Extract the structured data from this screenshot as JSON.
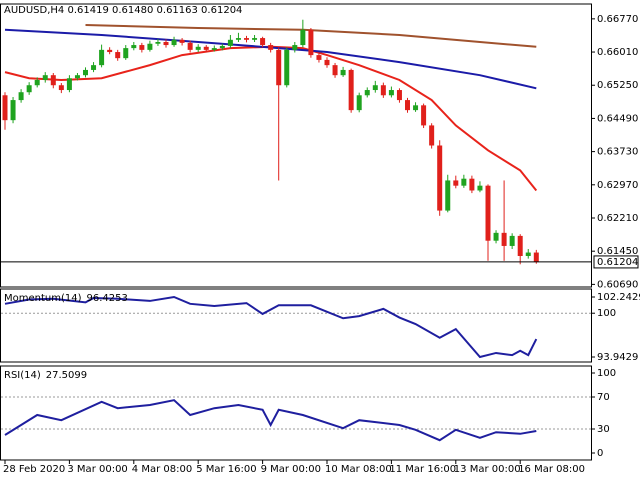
{
  "chart_data": [
    {
      "type": "candlestick",
      "title": "AUDUSD,H4  0.61419 0.61480 0.61163 0.61204",
      "categories": [
        "28 Feb 2020",
        null,
        null,
        null,
        null,
        null,
        null,
        null,
        "3 Mar 00:00",
        null,
        null,
        null,
        null,
        null,
        null,
        null,
        "4 Mar 08:00",
        null,
        null,
        null,
        null,
        null,
        null,
        null,
        "5 Mar 16:00",
        null,
        null,
        null,
        null,
        null,
        null,
        null,
        "9 Mar 00:00",
        null,
        null,
        null,
        null,
        null,
        null,
        null,
        "10 Mar 08:00",
        null,
        null,
        null,
        null,
        null,
        null,
        null,
        "11 Mar 16:00",
        null,
        null,
        null,
        null,
        null,
        null,
        null,
        "13 Mar 00:00",
        null,
        null,
        null,
        null,
        null,
        null,
        null,
        "16 Mar 08:00",
        null,
        null
      ],
      "open": [
        0.6502,
        0.6445,
        0.6491,
        0.6509,
        0.6525,
        0.6537,
        0.6548,
        0.6525,
        0.6514,
        0.6541,
        0.6548,
        0.656,
        0.6571,
        0.6606,
        0.6601,
        0.6587,
        0.661,
        0.6617,
        0.6606,
        0.662,
        0.6624,
        0.6617,
        0.6629,
        0.6622,
        0.6606,
        0.6613,
        0.6606,
        0.661,
        0.6615,
        0.6629,
        0.6633,
        0.6629,
        0.6633,
        0.6617,
        0.6606,
        0.6525,
        0.6606,
        0.6617,
        0.6652,
        0.6594,
        0.6583,
        0.6571,
        0.6548,
        0.656,
        0.6468,
        0.6502,
        0.6514,
        0.6525,
        0.6502,
        0.6514,
        0.6491,
        0.6468,
        0.6479,
        0.6433,
        0.6387,
        0.6238,
        0.6307,
        0.6295,
        0.6311,
        0.6284,
        0.6295,
        0.6169,
        0.6187,
        0.6157,
        0.618,
        0.6134,
        0.61419
      ],
      "high": [
        0.6509,
        0.6498,
        0.6516,
        0.6532,
        0.6543,
        0.6555,
        0.6553,
        0.653,
        0.6548,
        0.6553,
        0.6566,
        0.6578,
        0.6618,
        0.6612,
        0.6606,
        0.6617,
        0.6624,
        0.6622,
        0.6627,
        0.6631,
        0.663,
        0.6636,
        0.6633,
        0.6627,
        0.6619,
        0.6617,
        0.6616,
        0.662,
        0.664,
        0.6645,
        0.6638,
        0.664,
        0.6636,
        0.6622,
        0.6611,
        0.6612,
        0.6624,
        0.6675,
        0.6656,
        0.66,
        0.6589,
        0.6576,
        0.6567,
        0.6563,
        0.6508,
        0.652,
        0.6535,
        0.6531,
        0.6522,
        0.6518,
        0.6496,
        0.6486,
        0.6483,
        0.6438,
        0.6399,
        0.632,
        0.6318,
        0.632,
        0.6318,
        0.6305,
        0.6298,
        0.6193,
        0.6307,
        0.6186,
        0.6184,
        0.615,
        0.6148
      ],
      "low": [
        0.6423,
        0.6438,
        0.6485,
        0.6503,
        0.652,
        0.6531,
        0.6518,
        0.6507,
        0.6509,
        0.6536,
        0.6543,
        0.6555,
        0.6566,
        0.6596,
        0.6581,
        0.6583,
        0.6605,
        0.66,
        0.6602,
        0.6615,
        0.6611,
        0.6613,
        0.6616,
        0.66,
        0.6601,
        0.66,
        0.6602,
        0.6605,
        0.661,
        0.6624,
        0.6623,
        0.6624,
        0.6612,
        0.66,
        0.6307,
        0.652,
        0.66,
        0.6612,
        0.6588,
        0.6577,
        0.6565,
        0.6542,
        0.6544,
        0.6462,
        0.6463,
        0.6497,
        0.6508,
        0.6496,
        0.6497,
        0.6485,
        0.6462,
        0.6464,
        0.6427,
        0.638,
        0.6226,
        0.6234,
        0.6289,
        0.629,
        0.6278,
        0.628,
        0.6123,
        0.6163,
        0.6123,
        0.615,
        0.6115,
        0.6128,
        0.61163
      ],
      "close": [
        0.6445,
        0.6491,
        0.6509,
        0.6525,
        0.6537,
        0.6548,
        0.6525,
        0.6514,
        0.6541,
        0.6548,
        0.656,
        0.6571,
        0.6606,
        0.6601,
        0.6587,
        0.661,
        0.6617,
        0.6606,
        0.662,
        0.6624,
        0.6617,
        0.6629,
        0.6622,
        0.6606,
        0.6613,
        0.6606,
        0.661,
        0.6615,
        0.6629,
        0.6633,
        0.6629,
        0.6633,
        0.6617,
        0.6606,
        0.6525,
        0.6606,
        0.6617,
        0.6652,
        0.6594,
        0.6583,
        0.6571,
        0.6548,
        0.656,
        0.6468,
        0.6502,
        0.6514,
        0.6525,
        0.6502,
        0.6514,
        0.6491,
        0.6468,
        0.6479,
        0.6433,
        0.6387,
        0.6238,
        0.6307,
        0.6295,
        0.6311,
        0.6284,
        0.6295,
        0.6169,
        0.6187,
        0.6157,
        0.618,
        0.6134,
        0.61419,
        0.61204
      ],
      "up_color": "#1fa31f",
      "down_color": "#e0201b",
      "overlays": [
        {
          "color": "#e8231b",
          "x": [
            0,
            3,
            7,
            12,
            18,
            22,
            28,
            33,
            37,
            40,
            44,
            49,
            53,
            56,
            60,
            64,
            66
          ],
          "values": [
            0.6555,
            0.6541,
            0.6537,
            0.6541,
            0.6571,
            0.6594,
            0.661,
            0.6613,
            0.661,
            0.6594,
            0.6571,
            0.6537,
            0.6491,
            0.6433,
            0.6376,
            0.633,
            0.6284
          ]
        },
        {
          "color": "#1b1ba8",
          "x": [
            0,
            12,
            24,
            34,
            40,
            49,
            59,
            66
          ],
          "values": [
            0.6652,
            0.664,
            0.6624,
            0.661,
            0.6601,
            0.6578,
            0.6548,
            0.6518
          ]
        },
        {
          "color": "#a0522d",
          "x": [
            10,
            24,
            37,
            49,
            59,
            66
          ],
          "values": [
            0.6663,
            0.6656,
            0.6652,
            0.664,
            0.6624,
            0.6613
          ]
        }
      ],
      "ylim": [
        0.6063,
        0.6711
      ],
      "yticks": [
        {
          "value": 0.6677,
          "label": "0.66770"
        },
        {
          "value": 0.6601,
          "label": "0.66010"
        },
        {
          "value": 0.6525,
          "label": "0.65250"
        },
        {
          "value": 0.6449,
          "label": "0.64490"
        },
        {
          "value": 0.6373,
          "label": "0.63730"
        },
        {
          "value": 0.6297,
          "label": "0.62970"
        },
        {
          "value": 0.6221,
          "label": "0.62210"
        },
        {
          "value": 0.6145,
          "label": "0.61450"
        },
        {
          "value": 0.6069,
          "label": "0.60690"
        }
      ]
    },
    {
      "type": "line",
      "title": "Momentum(14)",
      "series": [
        {
          "color": "#1f1f9f",
          "x": [
            0,
            3,
            6,
            10,
            11,
            14,
            18,
            21,
            23,
            26,
            30,
            32,
            34,
            38,
            42,
            44,
            47,
            49,
            51,
            54,
            56,
            59,
            61,
            63,
            64,
            65,
            66
          ],
          "values": [
            101.3,
            101.9,
            102.0,
            101.5,
            102.1,
            102.0,
            101.7,
            102.2429,
            101.3,
            101.0,
            101.4,
            99.9,
            101.1,
            101.1,
            99.3,
            99.6,
            100.6,
            99.4,
            98.5,
            96.6,
            97.8,
            93.9429,
            94.5,
            94.2,
            94.8,
            94.2,
            96.4253
          ]
        }
      ],
      "ylim": [
        93.25,
        103.35
      ],
      "yticks": [
        102.2429,
        100,
        93.9429
      ],
      "levels": [
        100
      ]
    },
    {
      "type": "line",
      "title": "RSI(14)",
      "series": [
        {
          "color": "#1f1f9f",
          "x": [
            0,
            2,
            4,
            7,
            12,
            14,
            18,
            21,
            23,
            26,
            29,
            32,
            33,
            34,
            37,
            42,
            44,
            49,
            51,
            54,
            56,
            59,
            61,
            64,
            66
          ],
          "values": [
            22.5,
            35,
            47.5,
            41,
            64,
            56,
            60,
            66,
            47.5,
            56,
            60,
            54,
            35,
            54,
            47.5,
            31,
            41,
            35,
            29,
            16,
            29,
            19,
            26,
            24,
            27.5099
          ]
        }
      ],
      "ylim": [
        -8.75,
        108.75
      ],
      "yticks": [
        100,
        70,
        30,
        0
      ],
      "levels": [
        70,
        30
      ]
    }
  ]
}
